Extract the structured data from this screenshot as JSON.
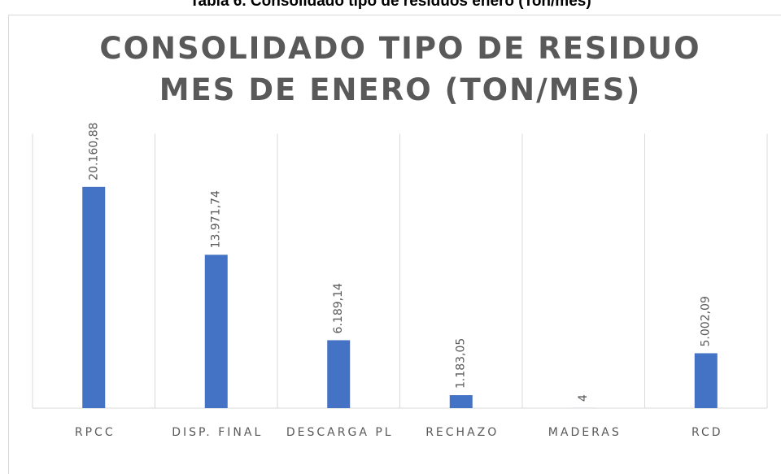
{
  "caption": "Tabla 6. Consolidado tipo de residuos enero (Ton/mes)",
  "chart_data": {
    "type": "bar",
    "title": [
      "CONSOLIDADO TIPO DE RESIDUO",
      "MES DE ENERO (TON/MES)"
    ],
    "categories": [
      "RPCC",
      "DISP. FINAL",
      "DESCARGA PL",
      "RECHAZO",
      "MADERAS",
      "RCD"
    ],
    "values": [
      20160.88,
      13971.74,
      6189.14,
      1183.05,
      4,
      5002.09
    ],
    "value_labels": [
      "20.160,88",
      "13.971,74",
      "6.189,14",
      "1.183,05",
      "4",
      "5.002,09"
    ],
    "color": "#4472c4",
    "ylim": [
      0,
      25000
    ]
  }
}
